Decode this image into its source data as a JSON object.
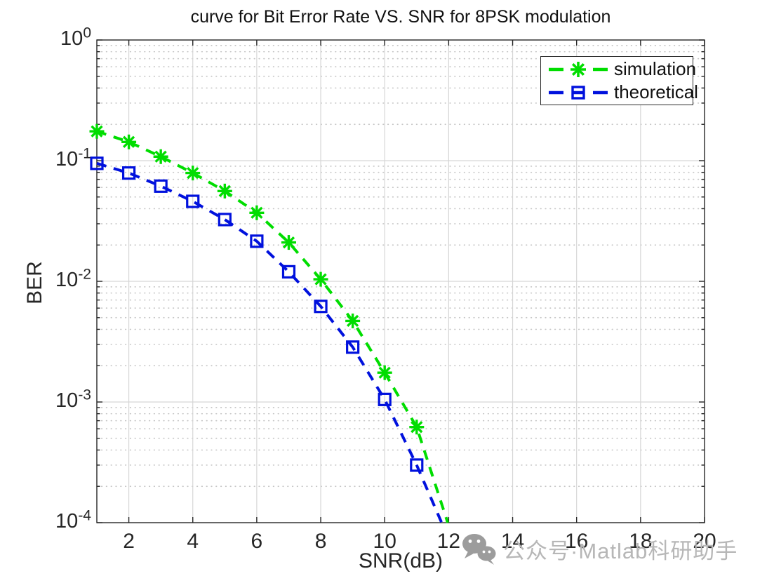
{
  "chart_data": {
    "type": "line",
    "title": "curve for Bit Error Rate VS. SNR for 8PSK modulation",
    "xlabel": "SNR(dB)",
    "ylabel": "BER",
    "x_scale": "linear",
    "y_scale": "log",
    "xlim": [
      1,
      20
    ],
    "ylim": [
      0.0001,
      1
    ],
    "x_ticks": [
      2,
      4,
      6,
      8,
      10,
      12,
      14,
      16,
      18,
      20
    ],
    "y_tick_exponents": [
      0,
      -1,
      -2,
      -3,
      -4
    ],
    "grid": "major solid gray; minor horizontal dotted (log decades)",
    "legend_position": "inside upper right",
    "x": [
      1,
      2,
      3,
      4,
      5,
      6,
      7,
      8,
      9,
      10,
      11
    ],
    "series": [
      {
        "name": "simulation",
        "color": "#00dd00",
        "marker": "asterisk",
        "linestyle": "dashed",
        "values": [
          0.175,
          0.143,
          0.108,
          0.079,
          0.056,
          0.037,
          0.021,
          0.0104,
          0.0047,
          0.00175,
          0.00062
        ],
        "line_extends_to": {
          "x": 11.97,
          "y": 0.0001
        }
      },
      {
        "name": "theoretical",
        "color": "#0011dd",
        "marker": "open-square",
        "linestyle": "dashed",
        "values": [
          0.095,
          0.079,
          0.0615,
          0.046,
          0.0325,
          0.0215,
          0.012,
          0.0062,
          0.00285,
          0.00105,
          0.0003
        ],
        "line_extends_to": {
          "x": 11.78,
          "y": 0.0001
        }
      }
    ]
  },
  "watermark": {
    "icon": "wechat-icon",
    "text": "公众号·Matlab科研助手"
  },
  "colors": {
    "simulation": "#00dd00",
    "theoretical": "#0011dd",
    "grid_major": "#d6d6d6",
    "grid_minor": "#c6c6c6",
    "axis": "#262626",
    "title_text": "#111111",
    "watermark_text": "#b7b7b7",
    "watermark_icon": "#9c9c9c",
    "background": "#ffffff"
  }
}
